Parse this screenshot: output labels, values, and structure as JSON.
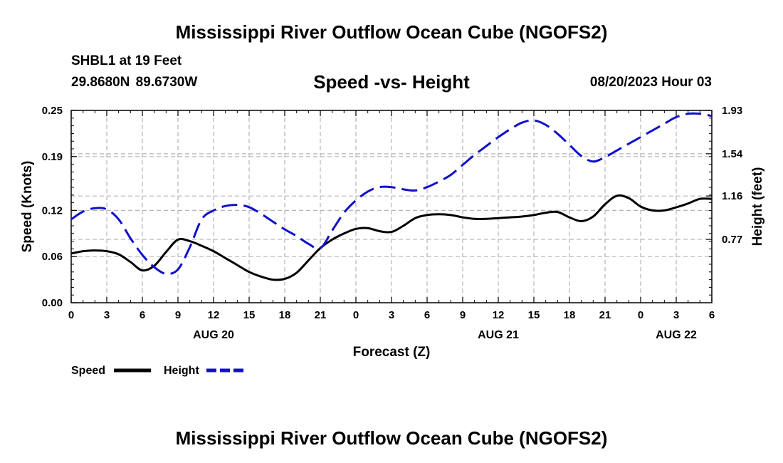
{
  "header": {
    "title": "Mississippi River Outflow Ocean Cube (NGOFS2)",
    "station": "SHBL1 at 19 Feet",
    "coords": "29.8680N  89.6730W",
    "subtitle": "Speed -vs- Height",
    "date": "08/20/2023 Hour 03"
  },
  "footer": {
    "title": "Mississippi River Outflow Ocean Cube (NGOFS2)"
  },
  "chart_data": {
    "type": "line",
    "title": "Speed -vs- Height",
    "xlabel": "Forecast (Z)",
    "ylabel_left": "Speed (Knots)",
    "ylabel_right": "Height (feet)",
    "x_range_hours": [
      0,
      54
    ],
    "x_ticks": [
      0,
      3,
      6,
      9,
      12,
      15,
      18,
      21,
      24,
      27,
      30,
      33,
      36,
      39,
      42,
      45,
      48,
      51,
      54
    ],
    "x_tick_labels": [
      "0",
      "3",
      "6",
      "9",
      "12",
      "15",
      "18",
      "21",
      "0",
      "3",
      "6",
      "9",
      "12",
      "15",
      "18",
      "21",
      "0",
      "3",
      "6"
    ],
    "day_labels": [
      {
        "hour": 12,
        "label": "AUG 20"
      },
      {
        "hour": 36,
        "label": "AUG 21"
      },
      {
        "hour": 51,
        "label": "AUG 22"
      }
    ],
    "y_left": {
      "range": [
        0,
        0.25
      ],
      "ticks": [
        0.0,
        0.06,
        0.12,
        0.19,
        0.25
      ],
      "tick_labels": [
        "0.00",
        "0.06",
        "0.12",
        "0.19",
        "0.25"
      ]
    },
    "y_right": {
      "range": [
        0.2,
        1.93
      ],
      "ticks": [
        0.77,
        1.16,
        1.54,
        1.93
      ],
      "tick_labels": [
        "0.77",
        "1.16",
        "1.54",
        "1.93"
      ]
    },
    "grid": true,
    "legend_position": "bottom-left",
    "series": [
      {
        "name": "Speed",
        "axis": "left",
        "color": "#000000",
        "dash": "solid",
        "x": [
          0,
          1,
          2,
          3,
          4,
          5,
          6,
          7,
          8,
          9,
          10,
          11,
          12,
          13,
          14,
          15,
          16,
          17,
          18,
          19,
          20,
          21,
          22,
          23,
          24,
          25,
          26,
          27,
          28,
          29,
          30,
          31,
          32,
          33,
          34,
          35,
          36,
          37,
          38,
          39,
          40,
          41,
          42,
          43,
          44,
          45,
          46,
          47,
          48,
          49,
          50,
          51,
          52,
          53,
          54
        ],
        "values": [
          0.064,
          0.067,
          0.068,
          0.067,
          0.063,
          0.053,
          0.042,
          0.048,
          0.066,
          0.082,
          0.08,
          0.074,
          0.067,
          0.058,
          0.049,
          0.04,
          0.034,
          0.03,
          0.031,
          0.039,
          0.055,
          0.071,
          0.082,
          0.09,
          0.096,
          0.097,
          0.093,
          0.092,
          0.1,
          0.11,
          0.114,
          0.115,
          0.114,
          0.111,
          0.109,
          0.109,
          0.11,
          0.111,
          0.112,
          0.114,
          0.117,
          0.118,
          0.111,
          0.106,
          0.112,
          0.128,
          0.139,
          0.136,
          0.125,
          0.12,
          0.12,
          0.124,
          0.129,
          0.135,
          0.135
        ]
      },
      {
        "name": "Height",
        "axis": "right",
        "color": "#1010cc",
        "dash": "dashed",
        "x": [
          0,
          1,
          2,
          3,
          4,
          5,
          6,
          7,
          8,
          9,
          10,
          11,
          12,
          13,
          14,
          15,
          16,
          17,
          18,
          19,
          20,
          21,
          22,
          23,
          24,
          25,
          26,
          27,
          28,
          29,
          30,
          31,
          32,
          33,
          34,
          35,
          36,
          37,
          38,
          39,
          40,
          41,
          42,
          43,
          44,
          45,
          46,
          47,
          48,
          49,
          50,
          51,
          52,
          53,
          54
        ],
        "values": [
          0.95,
          1.02,
          1.05,
          1.04,
          0.95,
          0.78,
          0.63,
          0.52,
          0.46,
          0.5,
          0.7,
          0.95,
          1.03,
          1.07,
          1.08,
          1.06,
          1.0,
          0.93,
          0.86,
          0.8,
          0.73,
          0.69,
          0.85,
          1.01,
          1.12,
          1.2,
          1.24,
          1.24,
          1.22,
          1.21,
          1.24,
          1.29,
          1.35,
          1.44,
          1.53,
          1.61,
          1.69,
          1.76,
          1.82,
          1.84,
          1.8,
          1.72,
          1.62,
          1.52,
          1.47,
          1.51,
          1.57,
          1.63,
          1.69,
          1.75,
          1.81,
          1.87,
          1.9,
          1.9,
          1.88
        ]
      }
    ]
  }
}
